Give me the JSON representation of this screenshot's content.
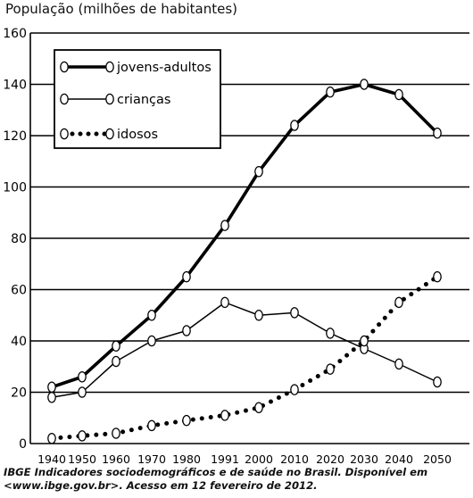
{
  "chart_data": {
    "type": "line",
    "title": "",
    "ylabel": "População (milhões de habitantes)",
    "xlabel": "",
    "x": [
      "1940",
      "1950",
      "1960",
      "1970",
      "1980",
      "1991",
      "2000",
      "2010",
      "2020",
      "2030",
      "2040",
      "2050"
    ],
    "ylim": [
      0,
      160
    ],
    "yticks": [
      0,
      20,
      40,
      60,
      80,
      100,
      120,
      140,
      160
    ],
    "grid": "horizontal",
    "legend": "top-left",
    "series": [
      {
        "name": "jovens-adultos",
        "style": "thick-solid",
        "values": [
          22,
          26,
          38,
          50,
          65,
          85,
          106,
          124,
          137,
          140,
          136,
          121
        ]
      },
      {
        "name": "crianças",
        "style": "thin-solid",
        "values": [
          18,
          20,
          32,
          40,
          44,
          55,
          50,
          51,
          43,
          37,
          31,
          24
        ]
      },
      {
        "name": "idosos",
        "style": "dotted",
        "values": [
          2,
          3,
          4,
          7,
          9,
          11,
          14,
          21,
          29,
          40,
          55,
          65
        ]
      }
    ]
  },
  "caption": {
    "line1": "IBGE Indicadores sociodemográficos e de saúde no Brasil. Disponível em",
    "line2": "<www.ibge.gov.br>. Acesso em 12 fevereiro de 2012."
  }
}
